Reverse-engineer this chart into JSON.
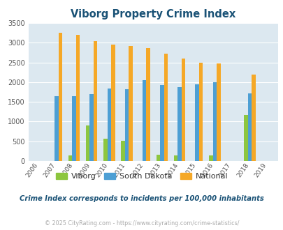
{
  "title": "Viborg Property Crime Index",
  "title_color": "#1a5276",
  "years": [
    2006,
    2007,
    2008,
    2009,
    2010,
    2011,
    2012,
    2013,
    2014,
    2015,
    2016,
    2017,
    2018,
    2019
  ],
  "viborg": [
    0,
    0,
    150,
    900,
    560,
    510,
    0,
    155,
    150,
    0,
    150,
    0,
    1170,
    0
  ],
  "south_dakota": [
    0,
    1640,
    1640,
    1700,
    1840,
    1820,
    2050,
    1920,
    1870,
    1950,
    2000,
    0,
    1720,
    0
  ],
  "national": [
    0,
    3250,
    3200,
    3040,
    2950,
    2920,
    2860,
    2720,
    2590,
    2490,
    2470,
    0,
    2200,
    0
  ],
  "viborg_color": "#8dc63f",
  "sd_color": "#4d9fd4",
  "national_color": "#f5a827",
  "bg_color": "#dce8f0",
  "ylim": [
    0,
    3500
  ],
  "yticks": [
    0,
    500,
    1000,
    1500,
    2000,
    2500,
    3000,
    3500
  ],
  "bar_width": 0.22,
  "subtitle": "Crime Index corresponds to incidents per 100,000 inhabitants",
  "subtitle_color": "#1a5276",
  "copyright": "© 2025 CityRating.com - https://www.cityrating.com/crime-statistics/",
  "copyright_color": "#aaaaaa",
  "legend_labels": [
    "Viborg",
    "South Dakota",
    "National"
  ],
  "grid_color": "#ffffff"
}
